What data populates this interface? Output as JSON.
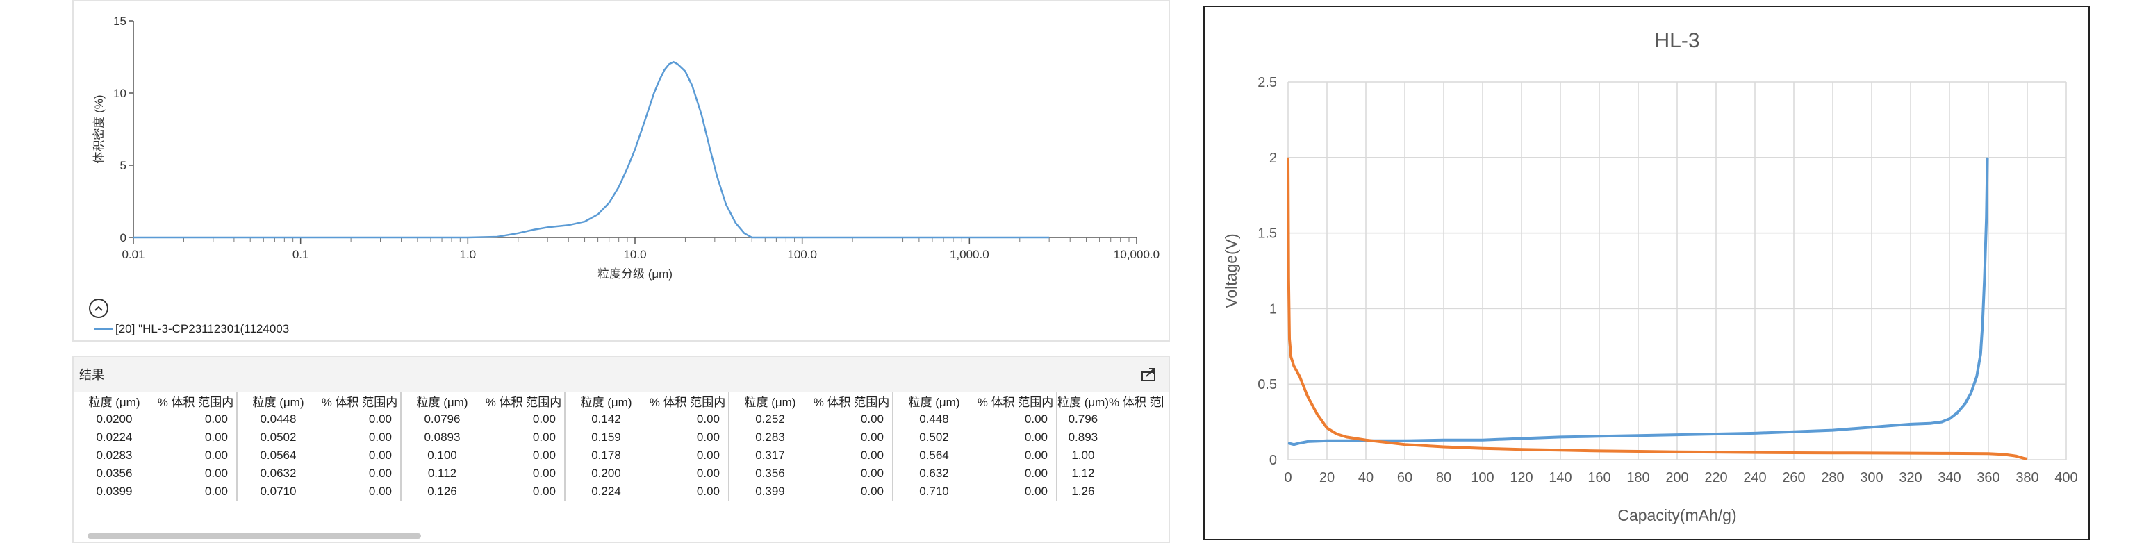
{
  "psd": {
    "y_label": "体积密度 (%)",
    "x_label": "粒度分级 (μm)",
    "y_ticks": [
      "15",
      "10",
      "5",
      "0"
    ],
    "x_ticks": [
      "0.01",
      "0.1",
      "1.0",
      "10.0",
      "100.0",
      "1,000.0",
      "10,000.0"
    ],
    "legend": "[20] \"HL-3-CP23112301(1124003"
  },
  "results": {
    "title": "结果",
    "col_size": "粒度 (μm)",
    "col_pct": "% 体积 范围内",
    "groups": [
      {
        "rows": [
          [
            "0.0200",
            "0.00"
          ],
          [
            "0.0224",
            "0.00"
          ],
          [
            "0.0283",
            "0.00"
          ],
          [
            "0.0356",
            "0.00"
          ],
          [
            "0.0399",
            "0.00"
          ]
        ]
      },
      {
        "rows": [
          [
            "0.0448",
            "0.00"
          ],
          [
            "0.0502",
            "0.00"
          ],
          [
            "0.0564",
            "0.00"
          ],
          [
            "0.0632",
            "0.00"
          ],
          [
            "0.0710",
            "0.00"
          ]
        ]
      },
      {
        "rows": [
          [
            "0.0796",
            "0.00"
          ],
          [
            "0.0893",
            "0.00"
          ],
          [
            "0.100",
            "0.00"
          ],
          [
            "0.112",
            "0.00"
          ],
          [
            "0.126",
            "0.00"
          ]
        ]
      },
      {
        "rows": [
          [
            "0.142",
            "0.00"
          ],
          [
            "0.159",
            "0.00"
          ],
          [
            "0.178",
            "0.00"
          ],
          [
            "0.200",
            "0.00"
          ],
          [
            "0.224",
            "0.00"
          ]
        ]
      },
      {
        "rows": [
          [
            "0.252",
            "0.00"
          ],
          [
            "0.283",
            "0.00"
          ],
          [
            "0.317",
            "0.00"
          ],
          [
            "0.356",
            "0.00"
          ],
          [
            "0.399",
            "0.00"
          ]
        ]
      },
      {
        "rows": [
          [
            "0.448",
            "0.00"
          ],
          [
            "0.502",
            "0.00"
          ],
          [
            "0.564",
            "0.00"
          ],
          [
            "0.632",
            "0.00"
          ],
          [
            "0.710",
            "0.00"
          ]
        ]
      },
      {
        "rows": [
          [
            "0.796",
            ""
          ],
          [
            "0.893",
            ""
          ],
          [
            "1.00",
            ""
          ],
          [
            "1.12",
            ""
          ],
          [
            "1.26",
            ""
          ]
        ]
      }
    ]
  },
  "chart_data": [
    {
      "type": "line",
      "title": "",
      "xlabel": "粒度分级 (μm)",
      "ylabel": "体积密度 (%)",
      "x_scale": "log",
      "xlim": [
        0.01,
        10000
      ],
      "ylim": [
        0,
        15
      ],
      "grid": false,
      "series": [
        {
          "name": "[20] \"HL-3-CP23112301(1124003",
          "color": "#5b9bd5",
          "points": [
            [
              0.01,
              0
            ],
            [
              1.0,
              0
            ],
            [
              1.5,
              0.05
            ],
            [
              2.0,
              0.3
            ],
            [
              2.5,
              0.55
            ],
            [
              3.0,
              0.7
            ],
            [
              4.0,
              0.85
            ],
            [
              5.0,
              1.1
            ],
            [
              6.0,
              1.6
            ],
            [
              7.0,
              2.4
            ],
            [
              8.0,
              3.5
            ],
            [
              9.0,
              4.8
            ],
            [
              10.0,
              6.1
            ],
            [
              11.0,
              7.5
            ],
            [
              12.0,
              8.8
            ],
            [
              13.0,
              10.0
            ],
            [
              14.0,
              10.9
            ],
            [
              15.0,
              11.6
            ],
            [
              16.0,
              12.0
            ],
            [
              17.0,
              12.15
            ],
            [
              18.0,
              12.0
            ],
            [
              20.0,
              11.5
            ],
            [
              22.0,
              10.5
            ],
            [
              25.0,
              8.5
            ],
            [
              28.0,
              6.2
            ],
            [
              31.0,
              4.2
            ],
            [
              35.0,
              2.3
            ],
            [
              40.0,
              1.0
            ],
            [
              45.0,
              0.3
            ],
            [
              50.0,
              0
            ],
            [
              100,
              0
            ],
            [
              1000,
              0
            ],
            [
              3000,
              0
            ]
          ]
        }
      ]
    },
    {
      "type": "line",
      "title": "HL-3",
      "xlabel": "Capacity(mAh/g)",
      "ylabel": "Voltage(V)",
      "xlim": [
        0,
        400
      ],
      "ylim": [
        0,
        2.5
      ],
      "x_ticks": [
        0,
        20,
        40,
        60,
        80,
        100,
        120,
        140,
        160,
        180,
        200,
        220,
        240,
        260,
        280,
        300,
        320,
        340,
        360,
        380,
        400
      ],
      "y_ticks": [
        "0",
        "0.5",
        "1",
        "1.5",
        "2",
        "2.5"
      ],
      "grid": true,
      "series": [
        {
          "color": "#5b9bd5",
          "points": [
            [
              0,
              0.11
            ],
            [
              3,
              0.1
            ],
            [
              6,
              0.11
            ],
            [
              10,
              0.12
            ],
            [
              20,
              0.125
            ],
            [
              40,
              0.125
            ],
            [
              60,
              0.125
            ],
            [
              80,
              0.13
            ],
            [
              100,
              0.13
            ],
            [
              120,
              0.14
            ],
            [
              140,
              0.15
            ],
            [
              160,
              0.155
            ],
            [
              180,
              0.16
            ],
            [
              200,
              0.165
            ],
            [
              220,
              0.17
            ],
            [
              240,
              0.175
            ],
            [
              260,
              0.185
            ],
            [
              280,
              0.195
            ],
            [
              300,
              0.215
            ],
            [
              310,
              0.225
            ],
            [
              320,
              0.235
            ],
            [
              330,
              0.24
            ],
            [
              336,
              0.25
            ],
            [
              340,
              0.27
            ],
            [
              344,
              0.31
            ],
            [
              348,
              0.37
            ],
            [
              351,
              0.44
            ],
            [
              354,
              0.55
            ],
            [
              356,
              0.7
            ],
            [
              357,
              0.9
            ],
            [
              358,
              1.2
            ],
            [
              359,
              1.6
            ],
            [
              359.5,
              2.0
            ]
          ]
        },
        {
          "color": "#ed7d31",
          "points": [
            [
              0,
              2.0
            ],
            [
              0.3,
              1.2
            ],
            [
              0.7,
              0.8
            ],
            [
              1.5,
              0.68
            ],
            [
              3,
              0.62
            ],
            [
              6,
              0.55
            ],
            [
              10,
              0.42
            ],
            [
              15,
              0.3
            ],
            [
              20,
              0.21
            ],
            [
              25,
              0.17
            ],
            [
              30,
              0.15
            ],
            [
              40,
              0.13
            ],
            [
              60,
              0.1
            ],
            [
              80,
              0.085
            ],
            [
              100,
              0.075
            ],
            [
              120,
              0.068
            ],
            [
              140,
              0.063
            ],
            [
              160,
              0.058
            ],
            [
              180,
              0.055
            ],
            [
              200,
              0.052
            ],
            [
              220,
              0.05
            ],
            [
              240,
              0.048
            ],
            [
              260,
              0.046
            ],
            [
              280,
              0.045
            ],
            [
              300,
              0.044
            ],
            [
              320,
              0.043
            ],
            [
              340,
              0.042
            ],
            [
              360,
              0.04
            ],
            [
              368,
              0.035
            ],
            [
              374,
              0.025
            ],
            [
              378,
              0.01
            ],
            [
              380,
              0.005
            ]
          ]
        }
      ]
    }
  ]
}
